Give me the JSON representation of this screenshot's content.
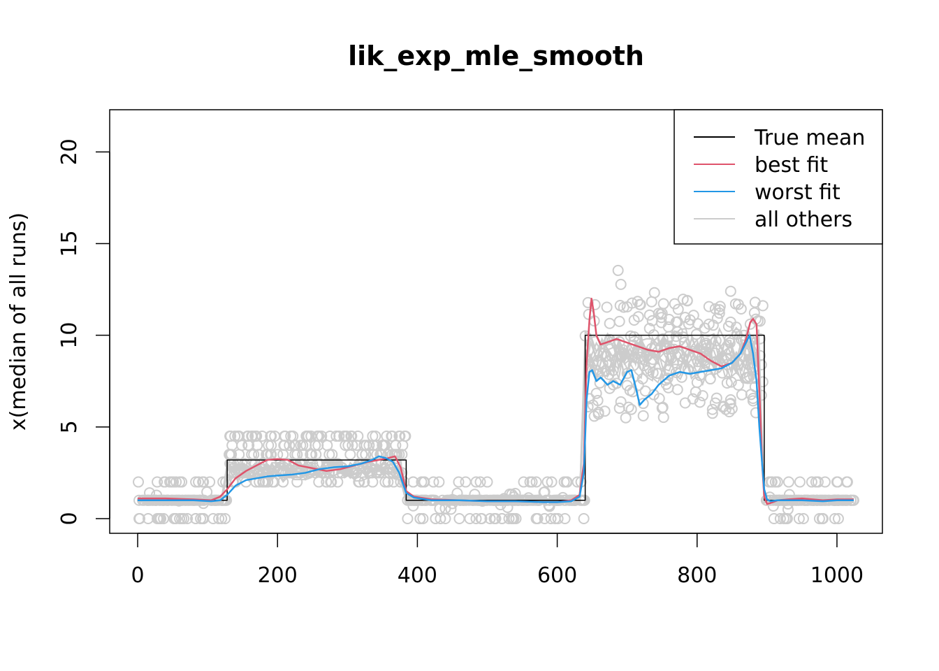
{
  "chart_data": {
    "type": "line",
    "title": "lik_exp_mle_smooth",
    "xlabel": "",
    "ylabel": "x(median of all runs)",
    "xlim": [
      -40,
      1065
    ],
    "ylim": [
      -0.8,
      22.3
    ],
    "x_ticks": [
      0,
      200,
      400,
      600,
      800,
      1000
    ],
    "y_ticks": [
      0,
      5,
      10,
      15,
      20
    ],
    "grid": false,
    "legend_position": "top-right",
    "colors": {
      "true_mean": "#000000",
      "best_fit": "#DF536B",
      "worst_fit": "#2297E6",
      "all_others": "#CCCCCC"
    },
    "legend": [
      {
        "label": "True mean",
        "color": "#000000"
      },
      {
        "label": "best fit",
        "color": "#DF536B"
      },
      {
        "label": "worst fit",
        "color": "#2297E6"
      },
      {
        "label": "all others",
        "color": "#CCCCCC"
      }
    ],
    "series": [
      {
        "name": "True mean",
        "color": "#000000",
        "x": [
          0,
          128,
          128,
          384,
          384,
          640,
          640,
          896,
          896,
          1024
        ],
        "y": [
          1,
          1,
          3.2,
          3.2,
          1,
          1,
          10,
          10,
          1,
          1
        ]
      },
      {
        "name": "best fit",
        "color": "#DF536B",
        "x": [
          0,
          40,
          80,
          105,
          118,
          128,
          140,
          155,
          170,
          185,
          200,
          215,
          230,
          250,
          270,
          290,
          310,
          330,
          345,
          358,
          368,
          376,
          384,
          395,
          420,
          460,
          500,
          540,
          580,
          600,
          620,
          632,
          638,
          642,
          646,
          649,
          652,
          656,
          662,
          670,
          685,
          700,
          715,
          730,
          745,
          760,
          775,
          790,
          805,
          820,
          835,
          850,
          862,
          870,
          876,
          880,
          885,
          889,
          893,
          896,
          900,
          905,
          915,
          930,
          950,
          980,
          1000,
          1024
        ],
        "y": [
          1.1,
          1.1,
          1.05,
          1.0,
          1.2,
          1.6,
          2.2,
          2.6,
          2.9,
          3.2,
          3.25,
          3.2,
          2.9,
          2.75,
          2.6,
          2.7,
          2.9,
          3.1,
          3.2,
          3.3,
          3.4,
          2.8,
          1.5,
          1.2,
          1.05,
          1.0,
          0.95,
          0.95,
          0.9,
          0.9,
          1.0,
          1.3,
          3.0,
          8.5,
          10.8,
          12.0,
          11.3,
          10.0,
          9.5,
          9.6,
          9.8,
          9.6,
          9.4,
          9.2,
          9.1,
          9.3,
          9.4,
          9.2,
          9.0,
          8.6,
          8.3,
          8.5,
          9.0,
          9.8,
          10.7,
          10.9,
          10.6,
          7.0,
          3.0,
          1.2,
          0.8,
          0.85,
          1.0,
          1.05,
          1.1,
          1.0,
          1.05,
          1.05
        ]
      },
      {
        "name": "worst fit",
        "color": "#2297E6",
        "x": [
          0,
          40,
          80,
          105,
          118,
          128,
          140,
          155,
          170,
          185,
          200,
          220,
          240,
          260,
          280,
          300,
          320,
          335,
          345,
          355,
          365,
          374,
          384,
          395,
          420,
          460,
          500,
          540,
          580,
          600,
          620,
          632,
          638,
          642,
          646,
          650,
          656,
          662,
          672,
          680,
          690,
          700,
          706,
          712,
          718,
          725,
          735,
          745,
          760,
          775,
          790,
          805,
          820,
          835,
          850,
          862,
          870,
          875,
          880,
          885,
          889,
          893,
          896,
          900,
          905,
          915,
          930,
          950,
          980,
          1000,
          1024
        ],
        "y": [
          1.0,
          1.0,
          1.0,
          0.95,
          1.0,
          1.3,
          1.8,
          2.1,
          2.2,
          2.3,
          2.35,
          2.4,
          2.5,
          2.7,
          2.8,
          2.85,
          3.0,
          3.2,
          3.4,
          3.3,
          3.1,
          2.5,
          1.4,
          1.15,
          1.0,
          1.0,
          0.95,
          0.95,
          0.9,
          0.9,
          0.95,
          1.2,
          2.5,
          6.5,
          8.0,
          8.1,
          7.5,
          7.7,
          7.3,
          7.5,
          7.3,
          8.0,
          8.1,
          7.2,
          6.2,
          6.5,
          6.8,
          7.3,
          7.8,
          8.0,
          7.9,
          8.0,
          8.1,
          8.2,
          8.5,
          9.0,
          9.6,
          10.0,
          9.0,
          7.5,
          5.0,
          3.0,
          1.6,
          1.05,
          0.95,
          1.0,
          1.0,
          1.0,
          0.95,
          1.0,
          1.0
        ]
      }
    ]
  }
}
